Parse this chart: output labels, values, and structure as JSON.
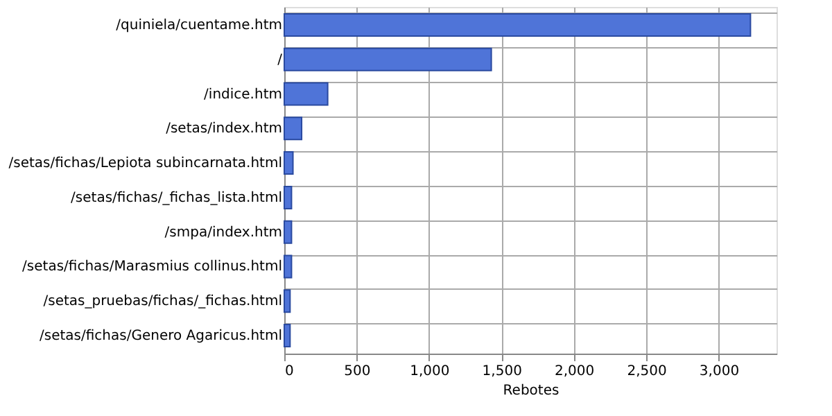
{
  "chart_data": {
    "type": "bar",
    "orientation": "horizontal",
    "xlabel": "Rebotes",
    "categories": [
      "/quiniela/cuentame.htm",
      "/",
      "/indice.htm",
      "/setas/index.htm",
      "/setas/fichas/Lepiota subincarnata.html",
      "/setas/fichas/_fichas_lista.html",
      "/smpa/index.htm",
      "/setas/fichas/Marasmius collinus.html",
      "/setas_pruebas/fichas/_fichas.html",
      "/setas/fichas/Genero Agaricus.html"
    ],
    "values": [
      3220,
      1430,
      300,
      120,
      60,
      50,
      50,
      50,
      40,
      40
    ],
    "color": "#4f74d8",
    "xlim": [
      0,
      3400
    ],
    "xticks": [
      0,
      {
        "value": 500,
        "label": "500"
      },
      {
        "value": 1000,
        "label": "1,000"
      },
      {
        "value": 1500,
        "label": "1,500"
      },
      {
        "value": 2000,
        "label": "2,000"
      },
      {
        "value": 2500,
        "label": "2,500"
      },
      {
        "value": 3000,
        "label": "3,000"
      }
    ],
    "grid": true
  }
}
